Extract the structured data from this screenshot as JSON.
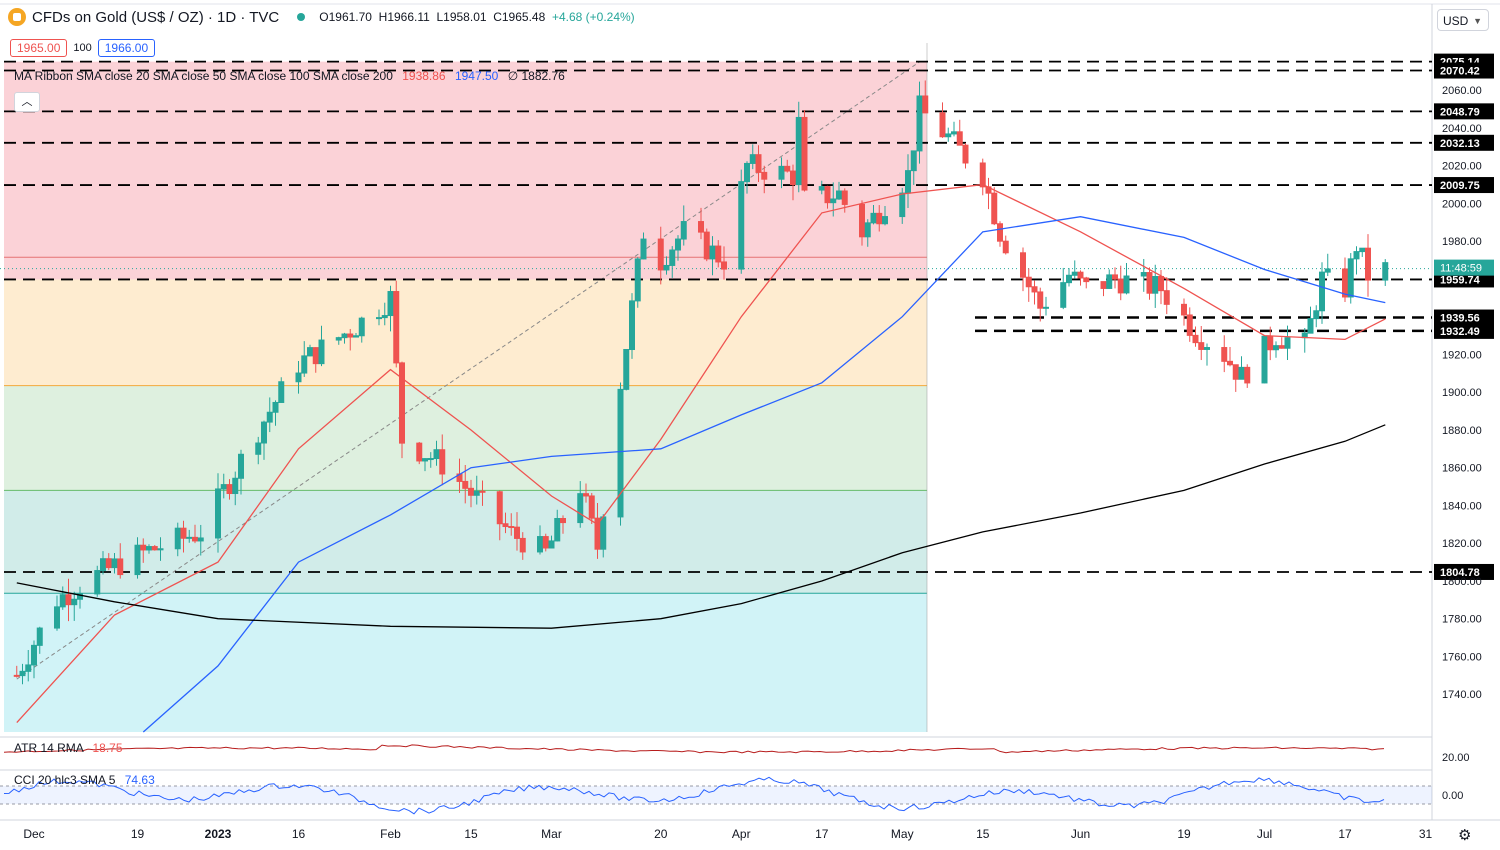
{
  "header": {
    "title": "CFDs on Gold (US$ / OZ) · 1D · TVC",
    "open": "O1961.70",
    "high": "H1966.11",
    "low": "L1958.01",
    "close": "C1965.48",
    "change": "+4.68 (+0.24%)"
  },
  "quote": {
    "bid": "1965.00",
    "spread": "100",
    "ask": "1966.00"
  },
  "ma_legend": {
    "label": "MA Ribbon SMA close 20 SMA close 50 SMA close 100 SMA close 200",
    "v1": "1938.86",
    "v2": "1947.50",
    "v3": "∅ 1882.76"
  },
  "atr": {
    "label": "ATR 14 RMA",
    "value": "18.75"
  },
  "cci": {
    "label": "CCI 20 hlc3 SMA 5",
    "value": "74.63"
  },
  "currency": "USD",
  "icons": {
    "gear": "gear-icon",
    "chevron": "chevron-down-icon",
    "collapse": "chevron-up-icon",
    "logo": "gold-logo-icon"
  },
  "colors": {
    "up": "#26a69a",
    "down": "#ef5350",
    "sma20": "#ef5350",
    "sma50": "#2962ff",
    "sma200": "#000000",
    "countdown_bg": "#26a69a"
  },
  "chart_data": {
    "type": "candlestick",
    "title": "CFDs on Gold (US$ / OZ) · 1D · TVC",
    "ylim": [
      1720,
      2085
    ],
    "y_ticks": [
      "2060.00",
      "2040.00",
      "2020.00",
      "2000.00",
      "1980.00",
      "1920.00",
      "1900.00",
      "1880.00",
      "1860.00",
      "1840.00",
      "1820.00",
      "1800.00",
      "1780.00",
      "1760.00",
      "1740.00"
    ],
    "x_ticks": [
      {
        "label": "Dec",
        "date": "2022-12-01"
      },
      {
        "label": "19",
        "date": "2022-12-19"
      },
      {
        "label": "2023",
        "date": "2023-01-02"
      },
      {
        "label": "16",
        "date": "2023-01-16"
      },
      {
        "label": "Feb",
        "date": "2023-02-01"
      },
      {
        "label": "15",
        "date": "2023-02-15"
      },
      {
        "label": "Mar",
        "date": "2023-03-01"
      },
      {
        "label": "20",
        "date": "2023-03-20"
      },
      {
        "label": "Apr",
        "date": "2023-04-03"
      },
      {
        "label": "17",
        "date": "2023-04-17"
      },
      {
        "label": "May",
        "date": "2023-05-01"
      },
      {
        "label": "15",
        "date": "2023-05-15"
      },
      {
        "label": "Jun",
        "date": "2023-06-01"
      },
      {
        "label": "19",
        "date": "2023-06-19"
      },
      {
        "label": "Jul",
        "date": "2023-07-03"
      },
      {
        "label": "17",
        "date": "2023-07-17"
      },
      {
        "label": "31",
        "date": "2023-07-31"
      }
    ],
    "price_levels": [
      "2075.14",
      "2070.42",
      "2048.79",
      "2032.13",
      "2009.75",
      "1959.74",
      "1939.56",
      "1932.49",
      "1804.78"
    ],
    "countdown": "11:48:59",
    "fib_zones": [
      {
        "from": 2075.14,
        "to": 1959.74,
        "color": "#f8b4bd"
      },
      {
        "from": 1959.74,
        "to": 1903.5,
        "color": "#fde0b0"
      },
      {
        "from": 1903.5,
        "to": 1848.0,
        "color": "#c8e6c9"
      },
      {
        "from": 1848.0,
        "to": 1805.0,
        "color": "#b2dfdb"
      },
      {
        "from": 1805.0,
        "to": 1793.5,
        "color": "#b2dfdb"
      },
      {
        "from": 1793.5,
        "to": 1720.0,
        "color": "#b2ebf2"
      }
    ],
    "fib_lines": [
      1971.5,
      1903.5,
      1848.0,
      1793.5
    ],
    "trend_line": [
      {
        "date": "2022-11-28",
        "value": 1748
      },
      {
        "date": "2023-05-04",
        "value": 2075
      }
    ],
    "candle_keys": [
      {
        "date": "2022-11-28",
        "value": 1750
      },
      {
        "date": "2022-12-05",
        "value": 1790
      },
      {
        "date": "2022-12-13",
        "value": 1805
      },
      {
        "date": "2022-12-20",
        "value": 1815
      },
      {
        "date": "2022-12-30",
        "value": 1826
      },
      {
        "date": "2023-01-09",
        "value": 1880
      },
      {
        "date": "2023-01-16",
        "value": 1915
      },
      {
        "date": "2023-01-26",
        "value": 1935
      },
      {
        "date": "2023-02-01",
        "value": 1950
      },
      {
        "date": "2023-02-03",
        "value": 1875
      },
      {
        "date": "2023-02-10",
        "value": 1862
      },
      {
        "date": "2023-02-22",
        "value": 1825
      },
      {
        "date": "2023-02-28",
        "value": 1815
      },
      {
        "date": "2023-03-06",
        "value": 1850
      },
      {
        "date": "2023-03-09",
        "value": 1818
      },
      {
        "date": "2023-03-13",
        "value": 1905
      },
      {
        "date": "2023-03-17",
        "value": 1985
      },
      {
        "date": "2023-03-20",
        "value": 1970
      },
      {
        "date": "2023-03-24",
        "value": 1985
      },
      {
        "date": "2023-03-31",
        "value": 1970
      },
      {
        "date": "2023-04-04",
        "value": 2020
      },
      {
        "date": "2023-04-12",
        "value": 2015
      },
      {
        "date": "2023-04-13",
        "value": 2042
      },
      {
        "date": "2023-04-14",
        "value": 2002
      },
      {
        "date": "2023-04-20",
        "value": 2005
      },
      {
        "date": "2023-04-24",
        "value": 1985
      },
      {
        "date": "2023-05-02",
        "value": 2015
      },
      {
        "date": "2023-05-04",
        "value": 2050
      },
      {
        "date": "2023-05-09",
        "value": 2035
      },
      {
        "date": "2023-05-15",
        "value": 2015
      },
      {
        "date": "2023-05-18",
        "value": 1985
      },
      {
        "date": "2023-05-25",
        "value": 1945
      },
      {
        "date": "2023-05-30",
        "value": 1962
      },
      {
        "date": "2023-06-02",
        "value": 1955
      },
      {
        "date": "2023-06-07",
        "value": 1960
      },
      {
        "date": "2023-06-15",
        "value": 1955
      },
      {
        "date": "2023-06-21",
        "value": 1932
      },
      {
        "date": "2023-06-26",
        "value": 1920
      },
      {
        "date": "2023-06-29",
        "value": 1908
      },
      {
        "date": "2023-07-05",
        "value": 1930
      },
      {
        "date": "2023-07-10",
        "value": 1925
      },
      {
        "date": "2023-07-13",
        "value": 1960
      },
      {
        "date": "2023-07-17",
        "value": 1955
      },
      {
        "date": "2023-07-19",
        "value": 1978
      },
      {
        "date": "2023-07-21",
        "value": 1962
      },
      {
        "date": "2023-07-24",
        "value": 1965
      }
    ],
    "series": [
      {
        "name": "SMA close 20",
        "color": "#ef5350",
        "values": [
          {
            "date": "2022-11-28",
            "value": 1725
          },
          {
            "date": "2022-12-15",
            "value": 1782
          },
          {
            "date": "2023-01-02",
            "value": 1810
          },
          {
            "date": "2023-01-16",
            "value": 1870
          },
          {
            "date": "2023-02-01",
            "value": 1912
          },
          {
            "date": "2023-02-15",
            "value": 1880
          },
          {
            "date": "2023-03-01",
            "value": 1845
          },
          {
            "date": "2023-03-09",
            "value": 1830
          },
          {
            "date": "2023-03-20",
            "value": 1875
          },
          {
            "date": "2023-04-03",
            "value": 1940
          },
          {
            "date": "2023-04-17",
            "value": 1995
          },
          {
            "date": "2023-05-01",
            "value": 2005
          },
          {
            "date": "2023-05-15",
            "value": 2010
          },
          {
            "date": "2023-06-01",
            "value": 1985
          },
          {
            "date": "2023-06-19",
            "value": 1955
          },
          {
            "date": "2023-07-03",
            "value": 1930
          },
          {
            "date": "2023-07-17",
            "value": 1928
          },
          {
            "date": "2023-07-24",
            "value": 1938.86
          }
        ]
      },
      {
        "name": "SMA close 50",
        "color": "#2962ff",
        "values": [
          {
            "date": "2022-12-20",
            "value": 1720
          },
          {
            "date": "2023-01-02",
            "value": 1755
          },
          {
            "date": "2023-01-16",
            "value": 1810
          },
          {
            "date": "2023-02-01",
            "value": 1835
          },
          {
            "date": "2023-02-15",
            "value": 1860
          },
          {
            "date": "2023-03-01",
            "value": 1866
          },
          {
            "date": "2023-03-20",
            "value": 1870
          },
          {
            "date": "2023-04-03",
            "value": 1888
          },
          {
            "date": "2023-04-17",
            "value": 1905
          },
          {
            "date": "2023-05-01",
            "value": 1940
          },
          {
            "date": "2023-05-15",
            "value": 1985
          },
          {
            "date": "2023-06-01",
            "value": 1993
          },
          {
            "date": "2023-06-19",
            "value": 1982
          },
          {
            "date": "2023-07-03",
            "value": 1965
          },
          {
            "date": "2023-07-17",
            "value": 1952
          },
          {
            "date": "2023-07-24",
            "value": 1947.5
          }
        ]
      },
      {
        "name": "SMA close 200",
        "color": "#000000",
        "values": [
          {
            "date": "2022-11-28",
            "value": 1799
          },
          {
            "date": "2022-12-15",
            "value": 1789
          },
          {
            "date": "2023-01-02",
            "value": 1780
          },
          {
            "date": "2023-02-01",
            "value": 1776
          },
          {
            "date": "2023-03-01",
            "value": 1775
          },
          {
            "date": "2023-03-20",
            "value": 1780
          },
          {
            "date": "2023-04-03",
            "value": 1788
          },
          {
            "date": "2023-04-17",
            "value": 1800
          },
          {
            "date": "2023-05-01",
            "value": 1815
          },
          {
            "date": "2023-05-15",
            "value": 1826
          },
          {
            "date": "2023-06-01",
            "value": 1836
          },
          {
            "date": "2023-06-19",
            "value": 1848
          },
          {
            "date": "2023-07-03",
            "value": 1862
          },
          {
            "date": "2023-07-17",
            "value": 1874
          },
          {
            "date": "2023-07-24",
            "value": 1882.76
          }
        ]
      }
    ],
    "atr_axis_tick": "20.00",
    "cci_axis_tick": "0.00"
  }
}
